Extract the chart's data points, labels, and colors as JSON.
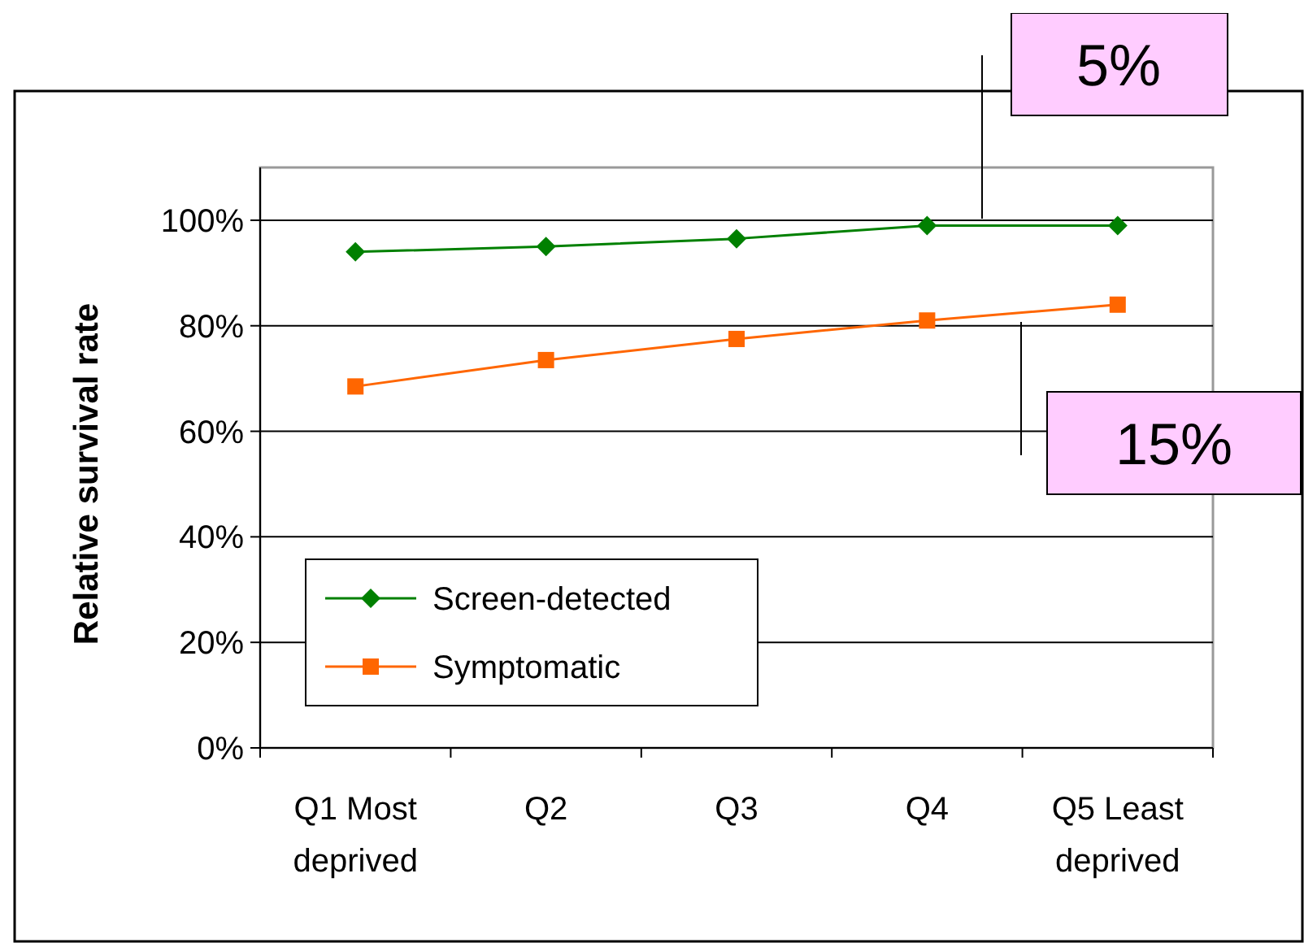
{
  "chart_data": {
    "type": "line",
    "ylabel": "Relative survival rate",
    "categories": [
      "Q1 Most deprived",
      "Q2",
      "Q3",
      "Q4",
      "Q5 Least deprived"
    ],
    "series": [
      {
        "name": "Screen-detected",
        "color": "#008000",
        "marker": "diamond",
        "values": [
          94,
          95,
          96.5,
          99,
          99
        ]
      },
      {
        "name": "Symptomatic",
        "color": "#ff6600",
        "marker": "square",
        "values": [
          68.5,
          73.5,
          77.5,
          81,
          84
        ]
      }
    ],
    "ylim": [
      0,
      110
    ],
    "yticks": [
      {
        "value": 0,
        "label": "0%"
      },
      {
        "value": 20,
        "label": "20%"
      },
      {
        "value": 40,
        "label": "40%"
      },
      {
        "value": 60,
        "label": "60%"
      },
      {
        "value": 80,
        "label": "80%"
      },
      {
        "value": 100,
        "label": "100%"
      }
    ],
    "grid": "y",
    "legend": "bottom left",
    "annotations": [
      "5%",
      "15%"
    ]
  }
}
